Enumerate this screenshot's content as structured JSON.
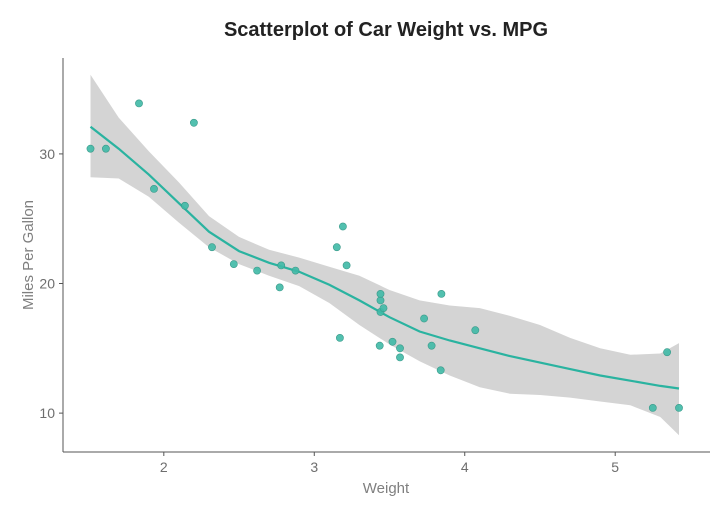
{
  "chart_data": {
    "type": "scatter",
    "title": "Scatterplot of Car Weight vs. MPG",
    "xlabel": "Weight",
    "ylabel": "Miles Per Gallon",
    "xlim": [
      1.33,
      5.63
    ],
    "ylim": [
      7.0,
      37.4
    ],
    "x_ticks": [
      2,
      3,
      4,
      5
    ],
    "x_tick_labels": [
      "2",
      "3",
      "4",
      "5"
    ],
    "y_ticks": [
      10,
      20,
      30
    ],
    "y_tick_labels": [
      "10",
      "20",
      "30"
    ],
    "grid": false,
    "legend": "none",
    "colors": {
      "points": "#3fb9a6",
      "point_edge": "#3a9a8a",
      "smooth_line": "#2ab3a0",
      "confidence_band": "#d4d4d4",
      "axis": "#555555"
    },
    "points": [
      {
        "x": 1.513,
        "y": 30.4
      },
      {
        "x": 1.615,
        "y": 30.4
      },
      {
        "x": 1.835,
        "y": 33.9
      },
      {
        "x": 1.935,
        "y": 27.3
      },
      {
        "x": 2.14,
        "y": 26.0
      },
      {
        "x": 2.2,
        "y": 32.4
      },
      {
        "x": 2.32,
        "y": 22.8
      },
      {
        "x": 2.465,
        "y": 21.5
      },
      {
        "x": 2.62,
        "y": 21.0
      },
      {
        "x": 2.77,
        "y": 19.7
      },
      {
        "x": 2.78,
        "y": 21.4
      },
      {
        "x": 2.875,
        "y": 21.0
      },
      {
        "x": 3.15,
        "y": 22.8
      },
      {
        "x": 3.17,
        "y": 15.8
      },
      {
        "x": 3.19,
        "y": 24.4
      },
      {
        "x": 3.215,
        "y": 21.4
      },
      {
        "x": 3.435,
        "y": 15.2
      },
      {
        "x": 3.44,
        "y": 18.7
      },
      {
        "x": 3.44,
        "y": 19.2
      },
      {
        "x": 3.44,
        "y": 17.8
      },
      {
        "x": 3.46,
        "y": 18.1
      },
      {
        "x": 3.52,
        "y": 15.5
      },
      {
        "x": 3.57,
        "y": 14.3
      },
      {
        "x": 3.57,
        "y": 15.0
      },
      {
        "x": 3.73,
        "y": 17.3
      },
      {
        "x": 3.78,
        "y": 15.2
      },
      {
        "x": 3.84,
        "y": 13.3
      },
      {
        "x": 3.845,
        "y": 19.2
      },
      {
        "x": 4.07,
        "y": 16.4
      },
      {
        "x": 5.25,
        "y": 10.4
      },
      {
        "x": 5.345,
        "y": 14.7
      },
      {
        "x": 5.424,
        "y": 10.4
      }
    ],
    "smooth": {
      "x": [
        1.513,
        1.7,
        1.9,
        2.1,
        2.3,
        2.5,
        2.7,
        2.9,
        3.1,
        3.3,
        3.5,
        3.7,
        3.9,
        4.1,
        4.3,
        4.5,
        4.7,
        4.9,
        5.1,
        5.3,
        5.424
      ],
      "y": [
        32.1,
        30.4,
        28.4,
        26.2,
        24.0,
        22.5,
        21.6,
        20.9,
        19.9,
        18.7,
        17.4,
        16.3,
        15.6,
        15.0,
        14.4,
        13.9,
        13.4,
        12.9,
        12.5,
        12.1,
        11.9
      ],
      "lower": [
        28.2,
        28.1,
        26.7,
        24.7,
        22.8,
        21.5,
        20.6,
        19.8,
        18.5,
        16.8,
        15.3,
        14.0,
        12.9,
        12.0,
        11.5,
        11.4,
        11.2,
        10.9,
        10.6,
        9.7,
        8.3
      ],
      "upper": [
        36.1,
        32.8,
        30.2,
        27.8,
        25.2,
        23.6,
        22.6,
        22.0,
        21.3,
        20.6,
        19.5,
        18.7,
        18.3,
        18.1,
        17.5,
        16.8,
        15.8,
        15.0,
        14.5,
        14.6,
        15.4
      ]
    }
  }
}
